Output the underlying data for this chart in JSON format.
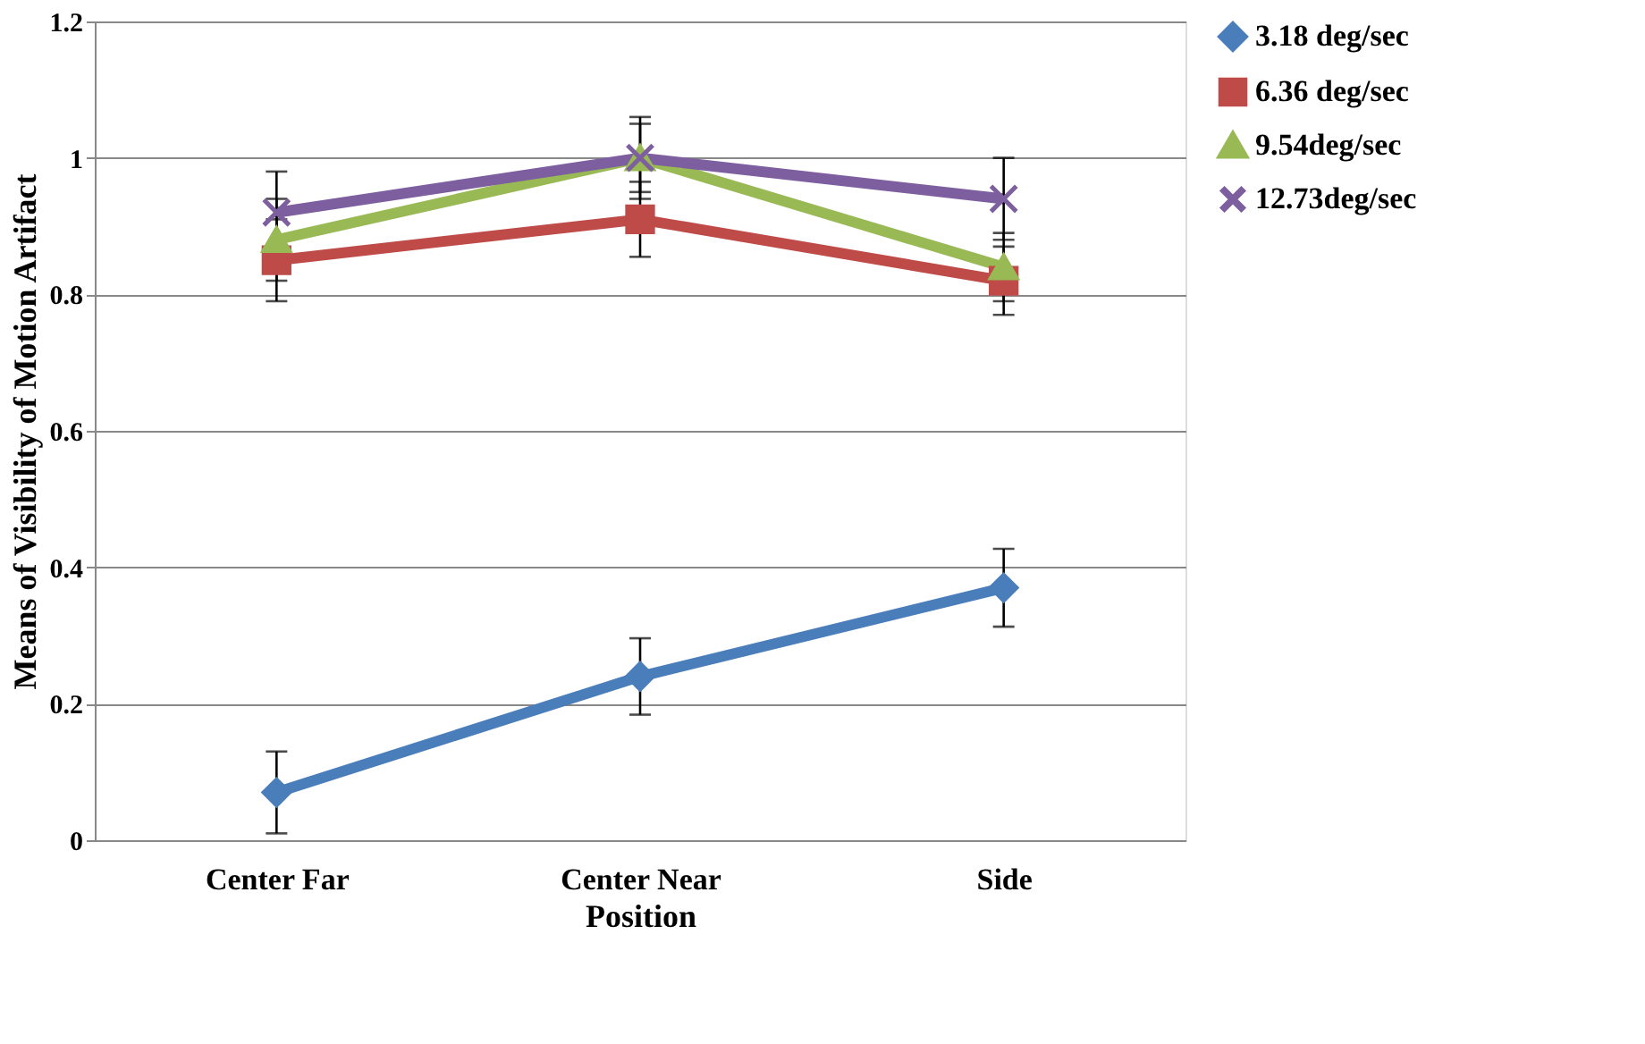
{
  "chart_data": {
    "type": "line",
    "xlabel": "Position",
    "ylabel": "Means of Visibility of Motion Artifact",
    "categories": [
      "Center Far",
      "Center Near",
      "Side"
    ],
    "ylim": [
      0,
      1.2
    ],
    "yticks": [
      0,
      0.2,
      0.4,
      0.6,
      0.8,
      1,
      1.2
    ],
    "grid": "y",
    "legend": "right",
    "series": [
      {
        "name": "3.18 deg/sec",
        "color": "#4a7ebb",
        "marker": "diamond",
        "values": [
          0.07,
          0.24,
          0.37
        ],
        "errors": [
          0.06,
          0.056,
          0.057
        ]
      },
      {
        "name": "6.36 deg/sec",
        "color": "#be4b48",
        "marker": "square",
        "values": [
          0.85,
          0.91,
          0.82
        ],
        "errors": [
          0.06,
          0.055,
          0.05
        ]
      },
      {
        "name": "9.54deg/sec",
        "color": "#98b954",
        "marker": "triangle",
        "values": [
          0.88,
          1.0,
          0.84
        ],
        "errors": [
          0.06,
          0.05,
          0.05
        ]
      },
      {
        "name": "12.73deg/sec",
        "color": "#7d5fa0",
        "marker": "cross",
        "values": [
          0.92,
          1.0,
          0.94
        ],
        "errors": [
          0.06,
          0.06,
          0.06
        ]
      }
    ]
  }
}
